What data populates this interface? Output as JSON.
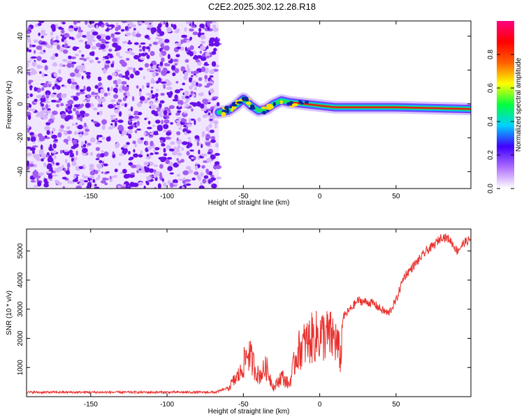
{
  "figure": {
    "title": "C2E2.2025.302.12.28.R18"
  },
  "chart_data": [
    {
      "type": "heatmap",
      "title": "C2E2.2025.302.12.28.R18",
      "xlabel": "Height of straight line (km)",
      "ylabel": "Frequency (Hz)",
      "xlim": [
        -192,
        99
      ],
      "ylim": [
        -50,
        49
      ],
      "x_ticks": [
        -150,
        -100,
        -50,
        0,
        50
      ],
      "y_ticks": [
        -40,
        -20,
        0,
        20,
        40
      ],
      "noise_region_km": [
        -192,
        -66
      ],
      "signal_region_km": [
        -66,
        99
      ],
      "signal_track": [
        {
          "x": -66,
          "y": -5
        },
        {
          "x": -60,
          "y": -4
        },
        {
          "x": -55,
          "y": -1
        },
        {
          "x": -50,
          "y": 3
        },
        {
          "x": -45,
          "y": -1
        },
        {
          "x": -40,
          "y": -4
        },
        {
          "x": -35,
          "y": -3
        },
        {
          "x": -30,
          "y": 0
        },
        {
          "x": -25,
          "y": 2
        },
        {
          "x": -20,
          "y": 1
        },
        {
          "x": -10,
          "y": 0
        },
        {
          "x": 0,
          "y": -1
        },
        {
          "x": 10,
          "y": -2
        },
        {
          "x": 20,
          "y": -2
        },
        {
          "x": 50,
          "y": -2
        },
        {
          "x": 99,
          "y": -3
        }
      ],
      "colorbar": {
        "label": "Normalized spectral amplitude",
        "range": [
          0,
          1
        ],
        "ticks": [
          0.0,
          0.2,
          0.4,
          0.6,
          0.8
        ],
        "colors": [
          "#ffffff",
          "#b070ff",
          "#4000ff",
          "#00d0ff",
          "#00ff40",
          "#ffff00",
          "#ff6000",
          "#ff0000",
          "#ff0080"
        ]
      }
    },
    {
      "type": "line",
      "xlabel": "Height of straight line (km)",
      "ylabel": "SNR (10 * v/v)",
      "xlim": [
        -192,
        99
      ],
      "ylim": [
        0,
        5750
      ],
      "x_ticks": [
        -150,
        -100,
        -50,
        0,
        50
      ],
      "y_ticks": [
        1000,
        2000,
        3000,
        4000,
        5000
      ],
      "series": [
        {
          "name": "SNR",
          "color": "#e8312d",
          "x": [
            -192,
            -150,
            -100,
            -68,
            -60,
            -52,
            -47,
            -40,
            -35,
            -30,
            -25,
            -20,
            -15,
            -10,
            -5,
            0,
            5,
            10,
            14,
            15,
            20,
            25,
            30,
            35,
            40,
            45,
            50,
            55,
            60,
            65,
            70,
            75,
            80,
            85,
            90,
            95,
            99
          ],
          "y": [
            150,
            150,
            150,
            150,
            300,
            800,
            1550,
            700,
            1000,
            300,
            700,
            400,
            1500,
            1800,
            2000,
            2100,
            2100,
            2000,
            1300,
            2700,
            3000,
            3300,
            3250,
            3200,
            3000,
            2850,
            3300,
            4100,
            4400,
            4700,
            5000,
            5200,
            5500,
            5400,
            5000,
            5300,
            5400
          ]
        }
      ]
    }
  ]
}
